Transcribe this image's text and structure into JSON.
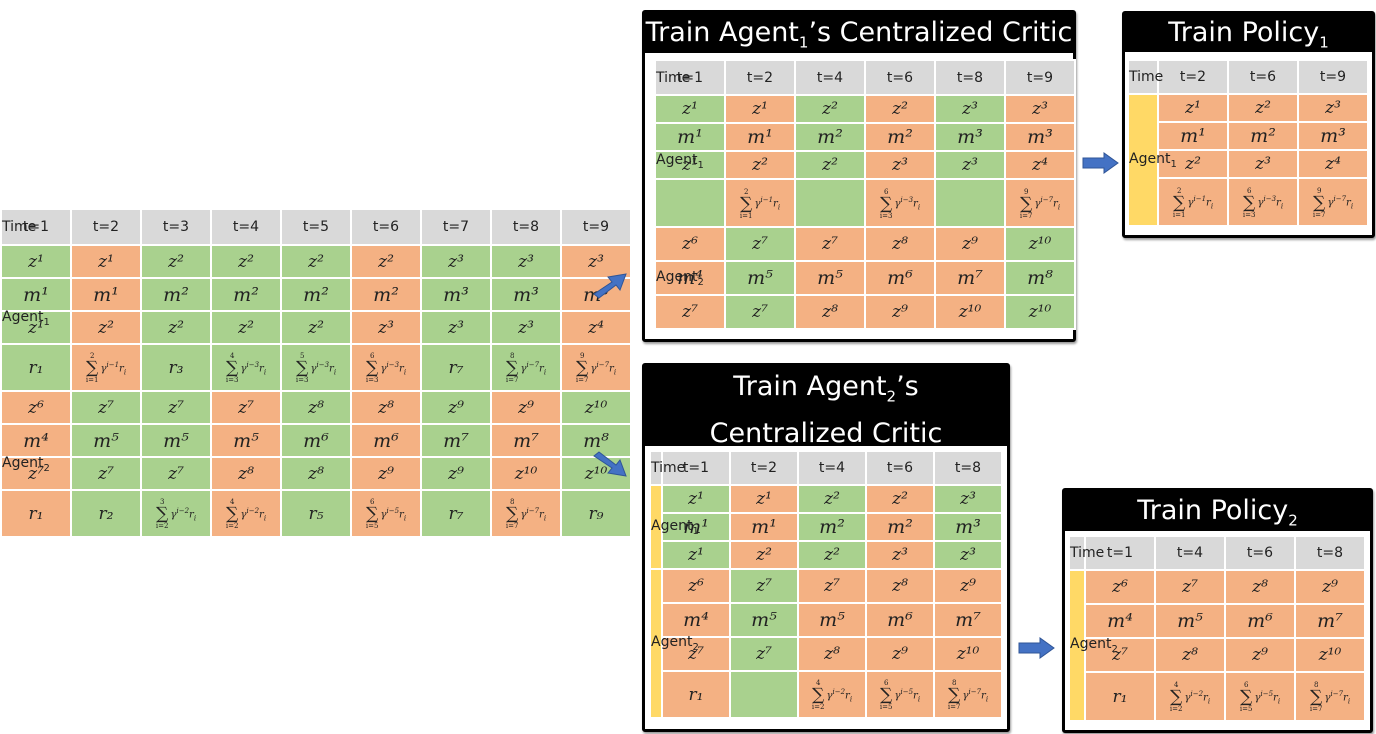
{
  "colors": {
    "green": "#a9d18e",
    "orange": "#f4b183",
    "agent": "#ffd966",
    "header": "#d9d9d9",
    "arrow": "#4472c4"
  },
  "main_table": {
    "header": [
      "Time",
      "t=1",
      "t=2",
      "t=3",
      "t=4",
      "t=5",
      "t=6",
      "t=7",
      "t=8",
      "t=9"
    ],
    "agents": [
      {
        "label": "Agent",
        "sub": "1",
        "colors": [
          "g",
          "o",
          "g",
          "g",
          "g",
          "o",
          "g",
          "g",
          "o"
        ],
        "rows": [
          [
            "z¹",
            "z¹",
            "z²",
            "z²",
            "z²",
            "z²",
            "z³",
            "z³",
            "z³"
          ],
          [
            "m¹",
            "m¹",
            "m²",
            "m²",
            "m²",
            "m²",
            "m³",
            "m³",
            "m³"
          ],
          [
            "z¹",
            "z²",
            "z²",
            "z²",
            "z²",
            "z³",
            "z³",
            "z³",
            "z⁴"
          ],
          [
            "r₁",
            "Σ(i=1..2) γ^(i-1) r_i",
            "r₃",
            "Σ(i=3..4) γ^(i-3) r_i",
            "Σ(i=3..5) γ^(i-3) r_i",
            "Σ(i=3..6) γ^(i-3) r_i",
            "r₇",
            "Σ(i=7..8) γ^(i-7) r_i",
            "Σ(i=7..9) γ^(i-7) r_i"
          ]
        ]
      },
      {
        "label": "Agent",
        "sub": "2",
        "colors": [
          "o",
          "g",
          "g",
          "o",
          "g",
          "o",
          "g",
          "o",
          "g"
        ],
        "rows": [
          [
            "z⁶",
            "z⁷",
            "z⁷",
            "z⁷",
            "z⁸",
            "z⁸",
            "z⁹",
            "z⁹",
            "z¹⁰"
          ],
          [
            "m⁴",
            "m⁵",
            "m⁵",
            "m⁵",
            "m⁶",
            "m⁶",
            "m⁷",
            "m⁷",
            "m⁸"
          ],
          [
            "z⁷",
            "z⁷",
            "z⁷",
            "z⁸",
            "z⁸",
            "z⁹",
            "z⁹",
            "z¹⁰",
            "z¹⁰"
          ],
          [
            "r₁",
            "r₂",
            "Σ(i=2..3) γ^(i-2) r_i",
            "Σ(i=2..4) γ^(i-2) r_i",
            "r₅",
            "Σ(i=5..6) γ^(i-5) r_i",
            "r₇",
            "Σ(i=7..8) γ^(i-7) r_i",
            "r₉"
          ]
        ]
      }
    ]
  },
  "critic1": {
    "title_pre": "Train Agent",
    "title_sub": "1",
    "title_post": "’s Centralized Critic",
    "header": [
      "Time",
      "t=1",
      "t=2",
      "t=4",
      "t=6",
      "t=8",
      "t=9"
    ],
    "agents": [
      {
        "label": "Agent",
        "sub": "1",
        "colors": [
          "g",
          "o",
          "g",
          "o",
          "g",
          "o"
        ],
        "rows": [
          [
            "z¹",
            "z¹",
            "z²",
            "z²",
            "z³",
            "z³"
          ],
          [
            "m¹",
            "m¹",
            "m²",
            "m²",
            "m³",
            "m³"
          ],
          [
            "z¹",
            "z²",
            "z²",
            "z³",
            "z³",
            "z⁴"
          ],
          [
            "",
            "Σ(i=1..2) γ^(i-1) r_i",
            "",
            "Σ(i=3..6) γ^(i-3) r_i",
            "",
            "Σ(i=7..9) γ^(i-7) r_i"
          ]
        ]
      },
      {
        "label": "Agent",
        "sub": "2",
        "colors": [
          "o",
          "g",
          "o",
          "o",
          "o",
          "g"
        ],
        "rows": [
          [
            "z⁶",
            "z⁷",
            "z⁷",
            "z⁸",
            "z⁹",
            "z¹⁰"
          ],
          [
            "m⁴",
            "m⁵",
            "m⁵",
            "m⁶",
            "m⁷",
            "m⁸"
          ],
          [
            "z⁷",
            "z⁷",
            "z⁸",
            "z⁹",
            "z¹⁰",
            "z¹⁰"
          ]
        ]
      }
    ]
  },
  "policy1": {
    "title_pre": "Train Policy",
    "title_sub": "1",
    "title_post": "",
    "header": [
      "Time",
      "t=2",
      "t=6",
      "t=9"
    ],
    "agents": [
      {
        "label": "Agent",
        "sub": "1",
        "colors": [
          "o",
          "o",
          "o"
        ],
        "rows": [
          [
            "z¹",
            "z²",
            "z³"
          ],
          [
            "m¹",
            "m²",
            "m³"
          ],
          [
            "z²",
            "z³",
            "z⁴"
          ],
          [
            "Σ(i=1..2) γ^(i-1) r_i",
            "Σ(i=3..6) γ^(i-3) r_i",
            "Σ(i=7..9) γ^(i-7) r_i"
          ]
        ]
      }
    ]
  },
  "critic2": {
    "title_line1_pre": "Train Agent",
    "title_sub": "2",
    "title_line1_post": "’s",
    "title_line2": "Centralized Critic",
    "header": [
      "Time",
      "t=1",
      "t=2",
      "t=4",
      "t=6",
      "t=8"
    ],
    "agents": [
      {
        "label": "Agent",
        "sub": "1",
        "colors": [
          "g",
          "o",
          "g",
          "o",
          "g"
        ],
        "rows": [
          [
            "z¹",
            "z¹",
            "z²",
            "z²",
            "z³"
          ],
          [
            "m¹",
            "m¹",
            "m²",
            "m²",
            "m³"
          ],
          [
            "z¹",
            "z²",
            "z²",
            "z³",
            "z³"
          ]
        ]
      },
      {
        "label": "Agent",
        "sub": "2",
        "colors": [
          "o",
          "g",
          "o",
          "o",
          "o"
        ],
        "rows": [
          [
            "z⁶",
            "z⁷",
            "z⁷",
            "z⁸",
            "z⁹"
          ],
          [
            "m⁴",
            "m⁵",
            "m⁵",
            "m⁶",
            "m⁷"
          ],
          [
            "z⁷",
            "z⁷",
            "z⁸",
            "z⁹",
            "z¹⁰"
          ],
          [
            "r₁",
            "",
            "Σ(i=2..4) γ^(i-2) r_i",
            "Σ(i=5..6) γ^(i-5) r_i",
            "Σ(i=7..8) γ^(i-7) r_i"
          ]
        ]
      }
    ]
  },
  "policy2": {
    "title_pre": "Train Policy",
    "title_sub": "2",
    "title_post": "",
    "header": [
      "Time",
      "t=1",
      "t=4",
      "t=6",
      "t=8"
    ],
    "agents": [
      {
        "label": "Agent",
        "sub": "2",
        "colors": [
          "o",
          "o",
          "o",
          "o"
        ],
        "rows": [
          [
            "z⁶",
            "z⁷",
            "z⁸",
            "z⁹"
          ],
          [
            "m⁴",
            "m⁵",
            "m⁶",
            "m⁷"
          ],
          [
            "z⁷",
            "z⁸",
            "z⁹",
            "z¹⁰"
          ],
          [
            "r₁",
            "Σ(i=2..4) γ^(i-2) r_i",
            "Σ(i=5..6) γ^(i-5) r_i",
            "Σ(i=7..8) γ^(i-7) r_i"
          ]
        ]
      }
    ]
  },
  "arrows": [
    {
      "name": "arrow-to-critic1",
      "direction": "up-right"
    },
    {
      "name": "arrow-to-critic2",
      "direction": "down-right"
    },
    {
      "name": "arrow-to-policy1",
      "direction": "right"
    },
    {
      "name": "arrow-to-policy2",
      "direction": "right"
    }
  ]
}
